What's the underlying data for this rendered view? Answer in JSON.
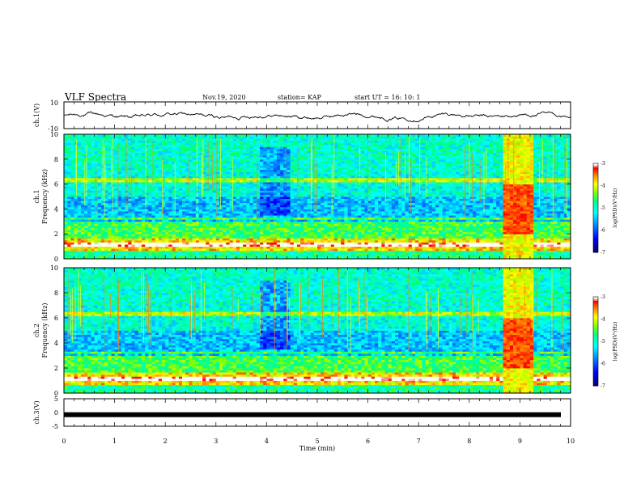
{
  "header": {
    "title": "VLF Spectra",
    "date": "Nov.19, 2020",
    "station": "station= KAP",
    "start_time": "start  UT =   16: 10: 1"
  },
  "colorbar_colors": [
    "#000080",
    "#0000ff",
    "#0080ff",
    "#00ffff",
    "#00ff80",
    "#80ff00",
    "#ffff00",
    "#ff8000",
    "#ff0000",
    "#ffffff"
  ],
  "chart_data": [
    {
      "type": "line",
      "panel": "ch1-waveform",
      "ylabel": "ch.1(V)",
      "ylim": [
        -10,
        10
      ],
      "yticks": [
        "10",
        "-10"
      ],
      "xlim": [
        0,
        10
      ],
      "series": [
        {
          "values_description_range": [
            -4,
            3
          ]
        }
      ]
    },
    {
      "type": "heatmap",
      "panel": "ch1-spectrogram",
      "ylabel_line1": "ch.1",
      "ylabel_line2": "Frequency (kHz)",
      "yticks": [
        "0",
        "2",
        "4",
        "6",
        "8",
        "10"
      ],
      "ylim": [
        0,
        10
      ],
      "xlim": [
        0,
        10
      ],
      "colorbar": {
        "label": "log(PSD)(V²/Hz)",
        "ticks": [
          "-3",
          "-4",
          "-5",
          "-6",
          "-7"
        ],
        "range": [
          -7,
          -3
        ]
      },
      "burst_interval_min": [
        8.65,
        9.25
      ]
    },
    {
      "type": "heatmap",
      "panel": "ch2-spectrogram",
      "ylabel_line1": "ch.2",
      "ylabel_line2": "Frequency (kHz)",
      "yticks": [
        "0",
        "2",
        "4",
        "6",
        "8",
        "10"
      ],
      "ylim": [
        0,
        10
      ],
      "xlim": [
        0,
        10
      ],
      "colorbar": {
        "label": "log(PSD)(V²/Hz)",
        "ticks": [
          "-3",
          "-4",
          "-5",
          "-6",
          "-7"
        ],
        "range": [
          -7,
          -3
        ]
      },
      "burst_interval_min": [
        8.65,
        9.25
      ]
    },
    {
      "type": "line",
      "panel": "ch3-waveform",
      "ylabel": "ch.3(V)",
      "ylim": [
        -5,
        5
      ],
      "yticks": [
        "5",
        "0",
        "-5"
      ],
      "xlim": [
        0,
        10
      ],
      "xlabel": "Time (min)",
      "xticks": [
        "0",
        "1",
        "2",
        "3",
        "4",
        "5",
        "6",
        "7",
        "8",
        "9",
        "10"
      ],
      "series": [
        {
          "constant_value": -0.8
        }
      ]
    }
  ]
}
